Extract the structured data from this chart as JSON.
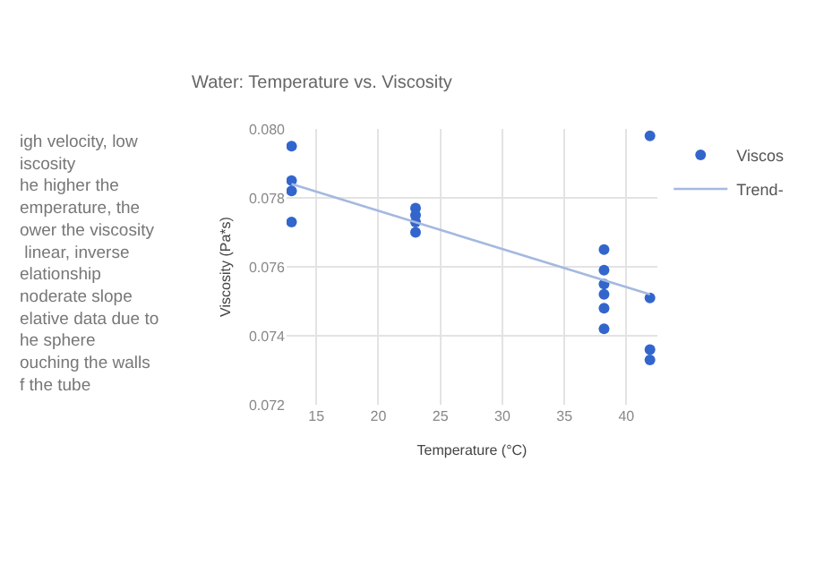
{
  "chart_data": {
    "type": "scatter",
    "title": "Water: Temperature vs. Viscosity",
    "xlabel": "Temperature (°C)",
    "ylabel": "Viscosity (Pa*s)",
    "annotations": [
      "igh velocity, low\niscosity\nhe higher the\nemperature, the\nower the viscosity\n linear, inverse\nelationship\nnoderate slope\nelative data due to\nhe sphere\nouching the walls\nf the tube"
    ],
    "series": [
      {
        "name": "Viscos",
        "color": "#3366cc",
        "marker": "circle",
        "x": [
          13,
          13,
          13,
          13,
          23,
          23,
          23,
          23,
          38.2,
          38.2,
          38.2,
          38.2,
          38.2,
          38.2,
          41.9,
          41.9,
          41.9,
          41.9
        ],
        "values": [
          0.0795,
          0.0785,
          0.0782,
          0.0773,
          0.0777,
          0.0775,
          0.0773,
          0.077,
          0.0765,
          0.0759,
          0.0755,
          0.0752,
          0.0748,
          0.0742,
          0.0798,
          0.0751,
          0.0736,
          0.0733
        ]
      },
      {
        "name": "Trend-",
        "type": "line",
        "marker": "none",
        "color": "#a4b9e0",
        "x": [
          13,
          41.9
        ],
        "values": [
          0.0784,
          0.0752
        ]
      }
    ],
    "xlim": [
      12.6,
      42.5
    ],
    "xticks": [
      15,
      20,
      25,
      30,
      35,
      40
    ],
    "ylim": [
      0.072,
      0.08
    ],
    "yticks": [
      {
        "value": 0.072,
        "label": "0.072"
      },
      {
        "value": 0.074,
        "label": "0.074"
      },
      {
        "value": 0.076,
        "label": "0.076"
      },
      {
        "value": 0.078,
        "label": "0.078"
      },
      {
        "value": 0.08,
        "label": "0.080"
      }
    ],
    "grid": true,
    "legend": "right"
  }
}
